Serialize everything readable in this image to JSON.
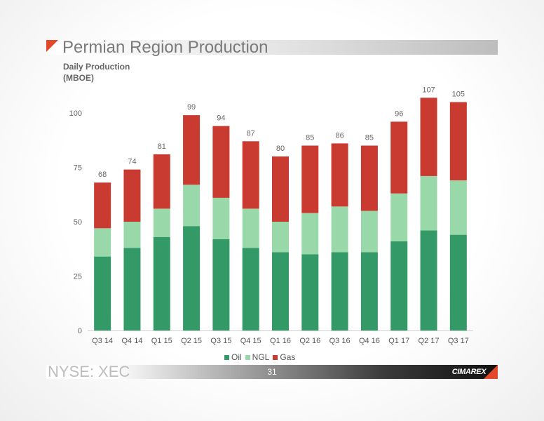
{
  "slide": {
    "title": "Permian Region Production",
    "subtitle_line1": "Daily Production",
    "subtitle_line2": "(MBOE)",
    "ticker": "NYSE: XEC",
    "page_number": "31",
    "logo_text": "CIMAREX",
    "accent_color": "#e2492b"
  },
  "chart_data": {
    "type": "bar",
    "stacked": true,
    "title": "",
    "xlabel": "",
    "ylabel": "",
    "ylim": [
      0,
      100
    ],
    "yticks": [
      0,
      25,
      50,
      75,
      100
    ],
    "categories": [
      "Q3 14",
      "Q4 14",
      "Q1 15",
      "Q2 15",
      "Q3 15",
      "Q4 15",
      "Q1 16",
      "Q2 16",
      "Q3 16",
      "Q4 16",
      "Q1 17",
      "Q2 17",
      "Q3 17"
    ],
    "totals": [
      68,
      74,
      81,
      99,
      94,
      87,
      80,
      85,
      86,
      85,
      96,
      107,
      105
    ],
    "series": [
      {
        "name": "Oil",
        "color": "#339966",
        "values": [
          34,
          38,
          43,
          48,
          42,
          38,
          36,
          35,
          36,
          36,
          41,
          46,
          44
        ]
      },
      {
        "name": "NGL",
        "color": "#99d9a9",
        "values": [
          13,
          12,
          13,
          19,
          19,
          18,
          14,
          19,
          21,
          19,
          22,
          25,
          25
        ]
      },
      {
        "name": "Gas",
        "color": "#c93a30",
        "values": [
          21,
          24,
          25,
          32,
          33,
          31,
          30,
          31,
          29,
          30,
          33,
          36,
          36
        ]
      }
    ],
    "legend_position": "bottom",
    "grid": false
  }
}
